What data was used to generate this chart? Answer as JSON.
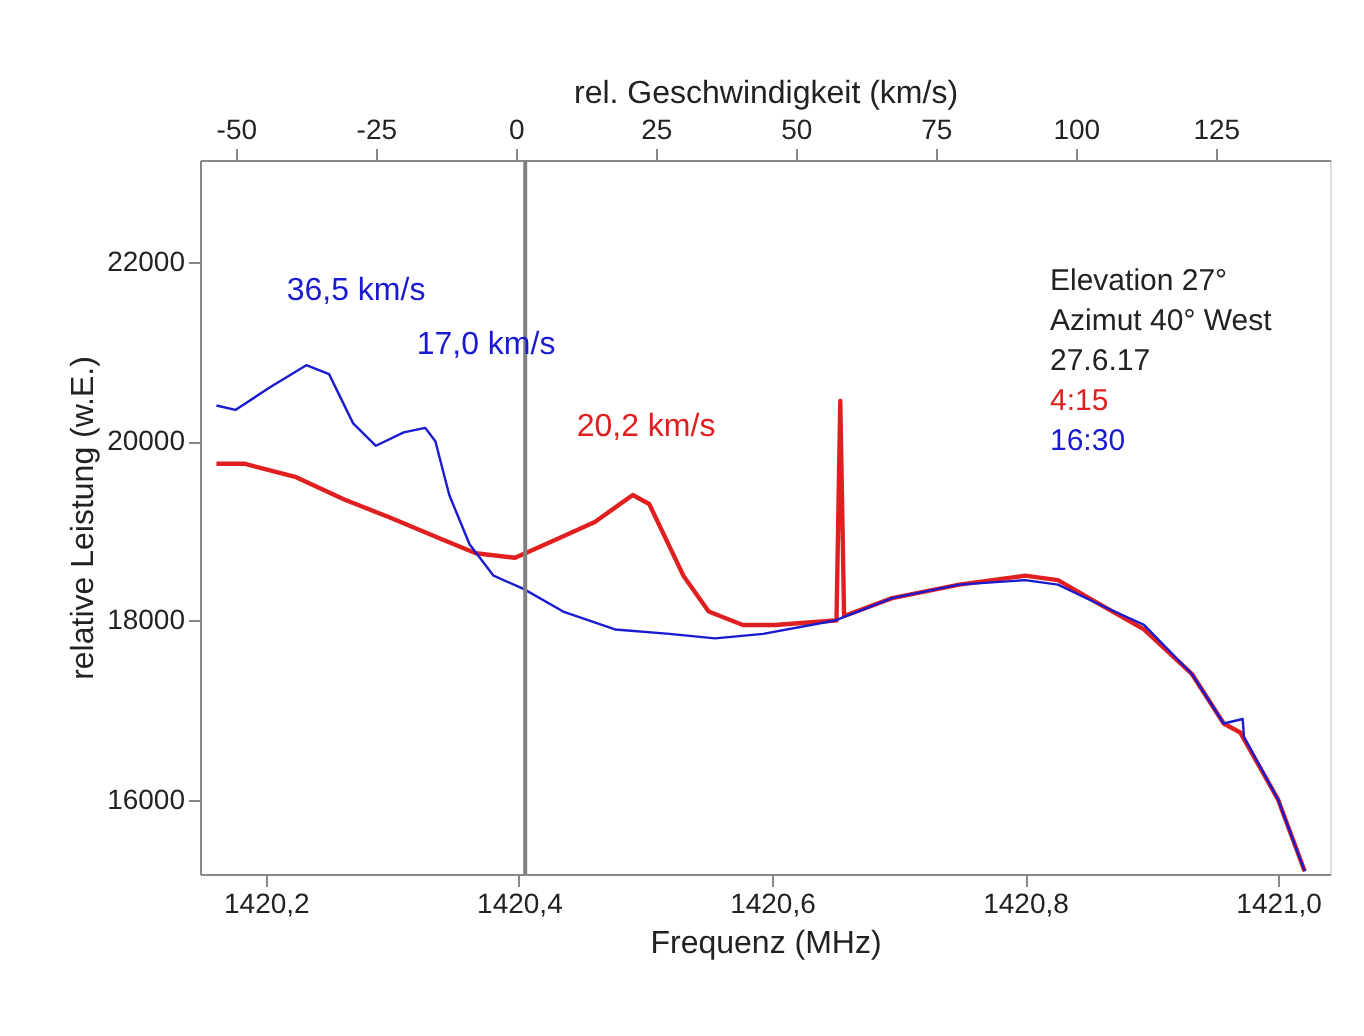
{
  "chart_data": {
    "type": "line",
    "xlabel": "Frequenz (MHz)",
    "ylabel": "relative Leistung (w.E.)",
    "x2label": "rel. Geschwindigkeit (km/s)",
    "series": [
      {
        "name": "4:15",
        "color": "#e02020",
        "x": [
          1420.161,
          1420.183,
          1420.224,
          1420.262,
          1420.298,
          1420.34,
          1420.366,
          1420.397,
          1420.429,
          1420.46,
          1420.49,
          1420.503,
          1420.53,
          1420.55,
          1420.577,
          1420.602,
          1420.65,
          1420.651,
          1420.654,
          1420.657,
          1420.695,
          1420.748,
          1420.8,
          1420.826,
          1420.863,
          1420.894,
          1420.932,
          1420.957,
          1420.97,
          1421.0,
          1421.021
        ],
        "values": [
          19750,
          19750,
          19600,
          19350,
          19150,
          18900,
          18750,
          18700,
          18900,
          19100,
          19400,
          19300,
          18500,
          18100,
          17950,
          17950,
          18000,
          18000,
          20450,
          18050,
          18250,
          18400,
          18500,
          18450,
          18150,
          17900,
          17400,
          16850,
          16750,
          16000,
          15200
        ]
      },
      {
        "name": "16:30",
        "color": "#1a1ad0",
        "x": [
          1420.161,
          1420.176,
          1420.203,
          1420.232,
          1420.25,
          1420.269,
          1420.287,
          1420.309,
          1420.326,
          1420.334,
          1420.345,
          1420.361,
          1420.38,
          1420.404,
          1420.435,
          1420.476,
          1420.519,
          1420.555,
          1420.593,
          1420.65,
          1420.695,
          1420.748,
          1420.8,
          1420.826,
          1420.863,
          1420.894,
          1420.932,
          1420.957,
          1420.972,
          1420.973,
          1421.0,
          1421.021
        ],
        "values": [
          20400,
          20350,
          20600,
          20850,
          20750,
          20200,
          19950,
          20100,
          20150,
          20000,
          19400,
          18850,
          18500,
          18350,
          18100,
          17900,
          17850,
          17800,
          17850,
          18000,
          18250,
          18400,
          18450,
          18400,
          18150,
          17950,
          17400,
          16850,
          16900,
          16700,
          16000,
          15200
        ]
      }
    ],
    "xlim": [
      1420.148,
      1421.041
    ],
    "xticks": [
      {
        "value": 1420.2,
        "label": "1420,2"
      },
      {
        "value": 1420.4,
        "label": "1420,4"
      },
      {
        "value": 1420.6,
        "label": "1420,6"
      },
      {
        "value": 1420.8,
        "label": "1420,8"
      },
      {
        "value": 1421.0,
        "label": "1421,0"
      }
    ],
    "x2lim": [
      -56.4,
      145.4
    ],
    "x2ticks": [
      -50,
      -25,
      0,
      25,
      50,
      75,
      100,
      125
    ],
    "ylim": [
      15170,
      23140
    ],
    "yticks": [
      16000,
      18000,
      20000,
      22000
    ],
    "ref_lines": [
      {
        "axis": "x",
        "value": 1420.405,
        "color": "#808080"
      }
    ],
    "annotations": [
      "36,5 km/s",
      "17,0 km/s",
      "20,2 km/s",
      "Elevation 27°",
      "Azimut 40° West",
      "27.6.17"
    ],
    "legend": "top right",
    "grid": false,
    "marker": "none",
    "line_style": "solid"
  }
}
